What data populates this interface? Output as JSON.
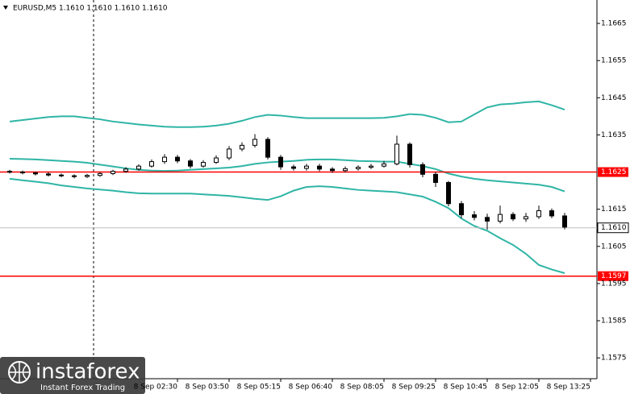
{
  "chart_data": {
    "type": "candlestick",
    "title": "EURUSD,M5  1.1610 1.1610 1.1610 1.1610",
    "categories": [
      null,
      null,
      null,
      null,
      null,
      null,
      null,
      null,
      null,
      null,
      null,
      null,
      null,
      "8 Sep 02:30",
      null,
      null,
      null,
      "8 Sep 03:50",
      null,
      null,
      null,
      "8 Sep 05:15",
      null,
      null,
      null,
      "8 Sep 06:40",
      null,
      null,
      null,
      "8 Sep 08:05",
      null,
      null,
      null,
      "8 Sep 09:25",
      null,
      null,
      null,
      "8 Sep 10:45",
      null,
      null,
      null,
      "8 Sep 12:05",
      null,
      null,
      null,
      "8 Sep 13:25"
    ],
    "open": [
      1.16252,
      1.1625,
      1.16248,
      1.16245,
      1.16242,
      1.1624,
      1.16238,
      1.16241,
      1.16246,
      1.16252,
      1.16258,
      1.16266,
      1.16278,
      1.1629,
      1.1628,
      1.16266,
      1.16276,
      1.16288,
      1.16312,
      1.16322,
      1.16338,
      1.1629,
      1.16264,
      1.1626,
      1.16266,
      1.16258,
      1.16254,
      1.16259,
      1.16263,
      1.16266,
      1.16272,
      1.16325,
      1.1627,
      1.16244,
      1.16222,
      1.16165,
      1.16135,
      1.16128,
      1.16118,
      1.16136,
      1.16124,
      1.1613,
      1.16146,
      1.16132,
      null,
      null
    ],
    "high": [
      1.16256,
      1.16254,
      1.16251,
      1.16249,
      1.16246,
      1.16244,
      1.16245,
      1.1625,
      1.16256,
      1.16263,
      1.16271,
      1.16284,
      1.16298,
      1.16296,
      1.16285,
      1.16282,
      1.16295,
      1.1632,
      1.1633,
      1.16352,
      1.16344,
      1.16296,
      1.1627,
      1.16272,
      1.16272,
      1.16263,
      1.16265,
      1.16268,
      1.16272,
      1.1628,
      1.16348,
      1.1633,
      1.16276,
      1.1625,
      1.16226,
      1.16172,
      1.16145,
      1.16138,
      1.1616,
      1.16142,
      1.1614,
      1.1616,
      1.16152,
      1.1614,
      null,
      null
    ],
    "low": [
      1.16246,
      1.16244,
      1.16241,
      1.16238,
      1.16236,
      1.16233,
      1.16234,
      1.16237,
      1.16242,
      1.16248,
      1.16254,
      1.16262,
      1.16272,
      1.16274,
      1.1626,
      1.16262,
      1.16272,
      1.16282,
      1.16306,
      1.16316,
      1.16284,
      1.16256,
      1.16254,
      1.16254,
      1.16252,
      1.16248,
      1.16249,
      1.16254,
      1.16258,
      1.16262,
      1.16268,
      1.16262,
      1.16236,
      1.1621,
      1.16158,
      1.16126,
      1.1612,
      1.16095,
      1.16112,
      1.16118,
      1.16116,
      1.16124,
      1.16126,
      1.16096,
      null,
      null
    ],
    "close": [
      1.1625,
      1.16248,
      1.16245,
      1.16242,
      1.1624,
      1.16238,
      1.16241,
      1.16246,
      1.16252,
      1.16258,
      1.16266,
      1.16278,
      1.1629,
      1.1628,
      1.16266,
      1.16276,
      1.16288,
      1.16312,
      1.16322,
      1.16338,
      1.1629,
      1.16264,
      1.1626,
      1.16266,
      1.16258,
      1.16254,
      1.16259,
      1.16263,
      1.16266,
      1.16272,
      1.16325,
      1.1627,
      1.16244,
      1.16222,
      1.16165,
      1.16135,
      1.16128,
      1.16118,
      1.16136,
      1.16124,
      1.1613,
      1.16146,
      1.16132,
      1.16102,
      null,
      null
    ],
    "up_color": "#ffffff",
    "down_color": "#000000",
    "lines": [
      {
        "color": "#2fb5a5",
        "values": [
          1.16386,
          1.1639,
          1.16394,
          1.16398,
          1.164,
          1.164,
          1.16396,
          1.16392,
          1.16386,
          1.16382,
          1.16378,
          1.16375,
          1.16372,
          1.16371,
          1.16371,
          1.16372,
          1.16375,
          1.1638,
          1.16388,
          1.16398,
          1.16404,
          1.16402,
          1.16398,
          1.16395,
          1.16395,
          1.16395,
          1.16395,
          1.16395,
          1.16395,
          1.16396,
          1.164,
          1.16406,
          1.16404,
          1.16396,
          1.16384,
          1.16386,
          1.16405,
          1.16424,
          1.16432,
          1.16434,
          1.16438,
          1.1644,
          1.1643,
          1.16418,
          null,
          null
        ]
      },
      {
        "color": "#2fb5a5",
        "values": [
          1.16286,
          1.16285,
          1.16284,
          1.16282,
          1.1628,
          1.16278,
          1.16275,
          1.1627,
          1.16265,
          1.1626,
          1.16256,
          1.16254,
          1.16253,
          1.16254,
          1.16256,
          1.16258,
          1.1626,
          1.16262,
          1.16266,
          1.16272,
          1.16276,
          1.16278,
          1.1628,
          1.16283,
          1.16284,
          1.16284,
          1.16282,
          1.1628,
          1.16279,
          1.16278,
          1.16278,
          1.16272,
          1.16266,
          1.16258,
          1.16246,
          1.16238,
          1.16232,
          1.16228,
          1.16225,
          1.16222,
          1.16219,
          1.16216,
          1.1621,
          1.16198,
          null,
          null
        ]
      },
      {
        "color": "#2fb5a5",
        "values": [
          1.16232,
          1.16228,
          1.16224,
          1.1622,
          1.16214,
          1.1621,
          1.16206,
          1.16203,
          1.162,
          1.16196,
          1.16193,
          1.16192,
          1.16192,
          1.16192,
          1.16192,
          1.1619,
          1.16188,
          1.16186,
          1.16182,
          1.16178,
          1.16175,
          1.16185,
          1.162,
          1.1621,
          1.16212,
          1.1621,
          1.16206,
          1.16202,
          1.162,
          1.16198,
          1.16196,
          1.1619,
          1.16184,
          1.1617,
          1.16153,
          1.16125,
          1.16105,
          1.16092,
          1.16072,
          1.16054,
          1.1603,
          1.16,
          1.15988,
          1.15978,
          null,
          null
        ]
      }
    ],
    "hlines": [
      {
        "value": 1.1625,
        "color": "#ff0000"
      },
      {
        "value": 1.1597,
        "color": "#ff0000"
      }
    ],
    "current": {
      "value": 1.161,
      "label": "1.1610"
    },
    "ylim": [
      1.15694,
      1.16713
    ],
    "yticks": [
      1.1665,
      1.1655,
      1.1645,
      1.1635,
      1.1615,
      1.1605,
      1.1595,
      1.1585,
      1.1575
    ]
  },
  "watermark": {
    "brand": "instaforex",
    "tagline": "Instant Forex Trading"
  }
}
